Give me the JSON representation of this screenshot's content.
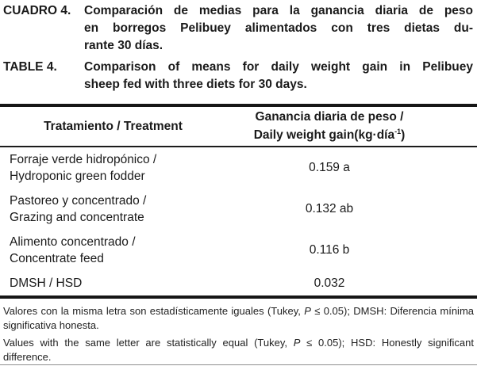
{
  "captions": {
    "es": {
      "label": "CUADRO 4.",
      "lines": [
        "Comparación de medias para la ganancia diaria de peso",
        "en borregos Pelibuey alimentados con tres dietas du-",
        "rante 30 días."
      ]
    },
    "en": {
      "label": "TABLE 4.",
      "lines": [
        "Comparison of means for daily weight gain in Pelibuey",
        "sheep fed with three diets for 30 days."
      ]
    }
  },
  "table": {
    "header": {
      "treatment": "Tratamiento / Treatment",
      "gain_line1": "Ganancia diaria de peso /",
      "gain_line2_pre": "Daily weight gain(kg·día",
      "gain_line2_sup": "-1",
      "gain_line2_post": ")"
    },
    "rows": [
      {
        "treatment_lines": [
          "Forraje verde hidropónico /",
          "Hydroponic green fodder"
        ],
        "value": "0.159 a"
      },
      {
        "treatment_lines": [
          "Pastoreo y concentrado /",
          "Grazing and concentrate"
        ],
        "value": "0.132 ab"
      },
      {
        "treatment_lines": [
          "Alimento concentrado /",
          "Concentrate feed"
        ],
        "value": "0.116 b"
      },
      {
        "treatment_lines": [
          "DMSH / HSD"
        ],
        "value": "0.032"
      }
    ]
  },
  "footnotes": {
    "es": {
      "pre": "Valores con la misma letra son estadísticamente iguales (Tukey, ",
      "stat": "P",
      "post": " ≤ 0.05); DMSH: Diferencia mínima significativa honesta."
    },
    "en": {
      "pre": "Values with the same letter are statistically equal (Tukey, ",
      "stat": "P",
      "post": " ≤ 0.05); HSD: Honestly significant difference."
    }
  },
  "colors": {
    "text": "#1a1a1a",
    "rule": "#161616",
    "bottom_rule": "#8f8f8f",
    "background": "#ffffff"
  }
}
